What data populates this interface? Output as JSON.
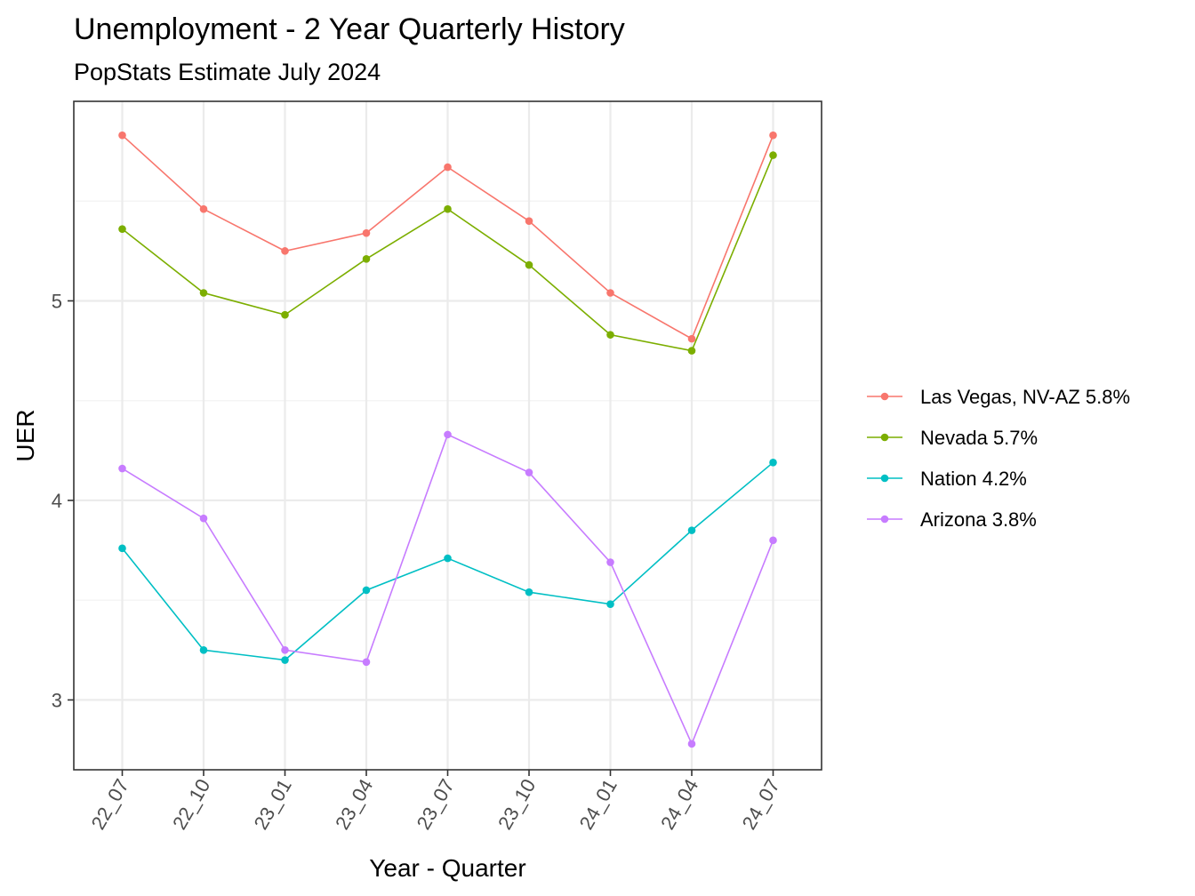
{
  "chart_data": {
    "type": "line",
    "title": "Unemployment - 2 Year Quarterly History",
    "subtitle": "PopStats Estimate July 2024",
    "xlabel": "Year - Quarter",
    "ylabel": "UER",
    "categories": [
      "22_07",
      "22_10",
      "23_01",
      "23_04",
      "23_07",
      "23_10",
      "24_01",
      "24_04",
      "24_07"
    ],
    "ylim": [
      2.65,
      6.0
    ],
    "yticks": [
      3,
      4,
      5
    ],
    "grid": true,
    "legend_position": "right",
    "series": [
      {
        "name": "Las Vegas, NV-AZ 5.8%",
        "color": "#F8766D",
        "values": [
          5.83,
          5.46,
          5.25,
          5.34,
          5.67,
          5.4,
          5.04,
          4.81,
          5.83
        ]
      },
      {
        "name": "Nevada 5.7%",
        "color": "#7CAE00",
        "values": [
          5.36,
          5.04,
          4.93,
          5.21,
          5.46,
          5.18,
          4.83,
          4.75,
          5.73
        ]
      },
      {
        "name": "Nation 4.2%",
        "color": "#00BFC4",
        "values": [
          3.76,
          3.25,
          3.2,
          3.55,
          3.71,
          3.54,
          3.48,
          3.85,
          4.19
        ]
      },
      {
        "name": "Arizona 3.8%",
        "color": "#C77CFF",
        "values": [
          4.16,
          3.91,
          3.25,
          3.19,
          4.33,
          4.14,
          3.69,
          2.78,
          3.8
        ]
      }
    ]
  }
}
